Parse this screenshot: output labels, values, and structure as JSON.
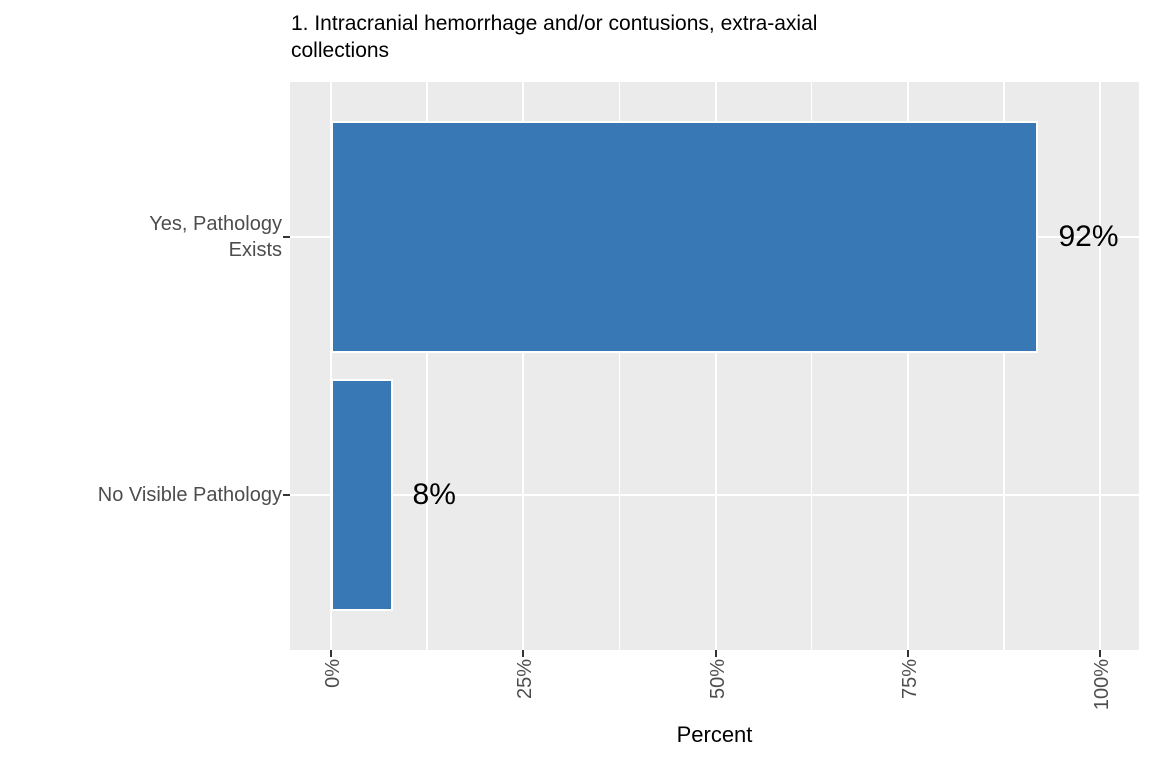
{
  "chart_data": {
    "type": "bar",
    "orientation": "horizontal",
    "title": "1. Intracranial hemorrhage and/or contusions, extra-axial collections",
    "title_lines": [
      "1. Intracranial hemorrhage and/or contusions, extra-axial",
      "collections"
    ],
    "xlabel": "Percent",
    "ylabel": "",
    "categories": [
      "Yes, Pathology Exists",
      "No Visible Pathology"
    ],
    "category_label_lines": [
      [
        "Yes, Pathology",
        "Exists"
      ],
      [
        "No Visible Pathology"
      ]
    ],
    "values": [
      92,
      8
    ],
    "bar_value_labels": [
      "92%",
      "8%"
    ],
    "x_axis": {
      "range": [
        0,
        100
      ],
      "ticks": [
        {
          "value": 0,
          "label": "0%"
        },
        {
          "value": 25,
          "label": "25%"
        },
        {
          "value": 50,
          "label": "50%"
        },
        {
          "value": 75,
          "label": "75%"
        },
        {
          "value": 100,
          "label": "100%"
        }
      ],
      "minor_tick_values": [
        12.5,
        37.5,
        62.5,
        87.5
      ]
    },
    "grid": {
      "major_vertical": true,
      "minor_vertical": true,
      "major_horizontal": true
    },
    "legend": "none",
    "colors": {
      "bar_fill": "#3878B4",
      "bar_border": "#FFFFFF",
      "panel_background": "#EBEBEB",
      "gridline": "#FFFFFF",
      "axis_text": "#4D4D4D",
      "tick_mark": "#333333",
      "text": "#000000"
    }
  }
}
